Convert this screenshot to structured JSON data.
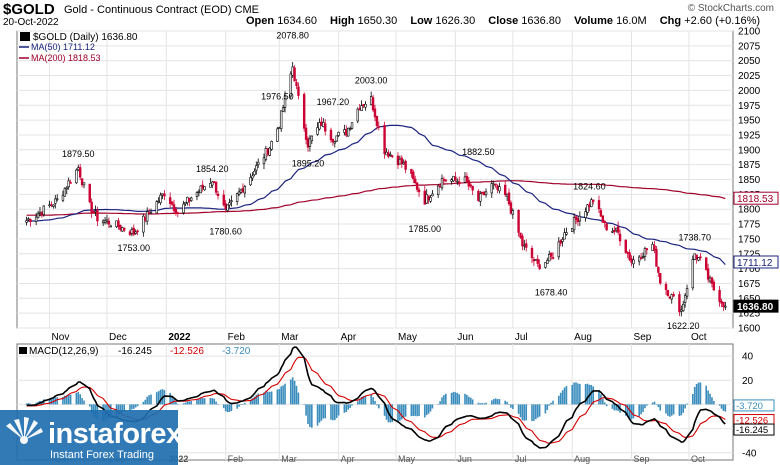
{
  "header": {
    "symbol": "$GOLD",
    "subtitle": "Gold - Continuous Contract (EOD)  CME",
    "date": "20-Oct-2022",
    "copyright": "© StockCharts.com",
    "ohlc": [
      {
        "label": "Open",
        "value": "1634.60"
      },
      {
        "label": "High",
        "value": "1650.30"
      },
      {
        "label": "Low",
        "value": "1626.30"
      },
      {
        "label": "Close",
        "value": "1636.80"
      },
      {
        "label": "Volume",
        "value": "16.0M"
      },
      {
        "label": "Chg",
        "value": "+2.60 (+0.16%)"
      }
    ]
  },
  "legend": {
    "price": "$GOLD (Daily) 1636.80",
    "ma50": "MA(50) 1711.12",
    "ma200": "MA(200) 1818.53"
  },
  "macd_legend": {
    "label": "MACD(12,26,9)",
    "macd": "-16.245",
    "signal": "-12.526",
    "hist": "-3.720"
  },
  "logo": {
    "word": "instaforex",
    "tag": "Instant Forex Trading"
  },
  "colors": {
    "up": "#000000",
    "down": "#cc0033",
    "ma50": "#1a237e",
    "ma200": "#a0002a",
    "macd": "#000000",
    "signal": "#d40000",
    "hist": "#3b8dbd",
    "grid": "#e4e4e4",
    "logo_bg": "#1f6fb0"
  },
  "chart_data": [
    {
      "type": "candlestick",
      "title": "$GOLD (Daily)",
      "x_labels": [
        "Nov",
        "Dec",
        "2022",
        "Feb",
        "Mar",
        "Apr",
        "May",
        "Jun",
        "Jul",
        "Aug",
        "Sep",
        "Oct"
      ],
      "y_ticks": [
        1600,
        1625,
        1650,
        1675,
        1700,
        1725,
        1750,
        1775,
        1800,
        1825,
        1850,
        1875,
        1900,
        1925,
        1950,
        1975,
        2000,
        2025,
        2050,
        2075,
        2100
      ],
      "ylim": [
        1600,
        2100
      ],
      "grid": true,
      "close_anchors": [
        [
          "2021-10-20",
          1781
        ],
        [
          "2021-10-27",
          1795
        ],
        [
          "2021-11-05",
          1815
        ],
        [
          "2021-11-16",
          1870
        ],
        [
          "2021-11-22",
          1805
        ],
        [
          "2021-11-26",
          1785
        ],
        [
          "2021-12-03",
          1777
        ],
        [
          "2021-12-15",
          1760
        ],
        [
          "2021-12-22",
          1790
        ],
        [
          "2021-12-31",
          1828
        ],
        [
          "2022-01-07",
          1795
        ],
        [
          "2022-01-14",
          1820
        ],
        [
          "2022-01-25",
          1850
        ],
        [
          "2022-02-01",
          1795
        ],
        [
          "2022-02-10",
          1836
        ],
        [
          "2022-02-24",
          1905
        ],
        [
          "2022-03-01",
          1944
        ],
        [
          "2022-03-08",
          2040
        ],
        [
          "2022-03-11",
          1985
        ],
        [
          "2022-03-16",
          1910
        ],
        [
          "2022-03-23",
          1945
        ],
        [
          "2022-03-29",
          1920
        ],
        [
          "2022-04-05",
          1930
        ],
        [
          "2022-04-12",
          1975
        ],
        [
          "2022-04-18",
          1985
        ],
        [
          "2022-04-25",
          1900
        ],
        [
          "2022-05-05",
          1875
        ],
        [
          "2022-05-16",
          1815
        ],
        [
          "2022-05-25",
          1850
        ],
        [
          "2022-06-06",
          1848
        ],
        [
          "2022-06-13",
          1815
        ],
        [
          "2022-06-20",
          1840
        ],
        [
          "2022-06-28",
          1820
        ],
        [
          "2022-07-06",
          1740
        ],
        [
          "2022-07-14",
          1705
        ],
        [
          "2022-07-21",
          1718
        ],
        [
          "2022-07-28",
          1760
        ],
        [
          "2022-08-05",
          1790
        ],
        [
          "2022-08-12",
          1816
        ],
        [
          "2022-08-18",
          1772
        ],
        [
          "2022-08-25",
          1760
        ],
        [
          "2022-09-01",
          1712
        ],
        [
          "2022-09-12",
          1740
        ],
        [
          "2022-09-16",
          1680
        ],
        [
          "2022-09-27",
          1630
        ],
        [
          "2022-10-04",
          1725
        ],
        [
          "2022-10-07",
          1712
        ],
        [
          "2022-10-13",
          1670
        ],
        [
          "2022-10-20",
          1636.8
        ]
      ],
      "annotations": [
        {
          "date": "2021-11-16",
          "text": "1879.50"
        },
        {
          "date": "2021-12-15",
          "text": "1753.00"
        },
        {
          "date": "2022-01-25",
          "text": "1854.20"
        },
        {
          "date": "2022-02-01",
          "text": "1780.60"
        },
        {
          "date": "2022-03-08",
          "text": "2078.80"
        },
        {
          "date": "2022-02-28",
          "text": "1976.50"
        },
        {
          "date": "2022-03-16",
          "text": "1895.20"
        },
        {
          "date": "2022-03-29",
          "text": "1967.20"
        },
        {
          "date": "2022-04-18",
          "text": "2003.00"
        },
        {
          "date": "2022-05-16",
          "text": "1785.00"
        },
        {
          "date": "2022-06-13",
          "text": "1882.50"
        },
        {
          "date": "2022-07-21",
          "text": "1678.40"
        },
        {
          "date": "2022-08-10",
          "text": "1824.60"
        },
        {
          "date": "2022-09-28",
          "text": "1622.20"
        },
        {
          "date": "2022-10-04",
          "text": "1738.70"
        }
      ],
      "last_values": [
        {
          "name": "MA(200)",
          "value": "1818.53"
        },
        {
          "name": "MA(50)",
          "value": "1711.12"
        },
        {
          "name": "$GOLD",
          "value": "1636.80"
        }
      ]
    },
    {
      "type": "line",
      "title": "MACD(12,26,9)",
      "y_ticks": [
        -40,
        -20,
        0,
        20,
        40
      ],
      "ylim": [
        -46,
        50
      ],
      "grid": true,
      "last_values": [
        {
          "name": "Histogram",
          "value": "-3.720"
        },
        {
          "name": "Signal",
          "value": "-12.526"
        },
        {
          "name": "MACD",
          "value": "-16.245"
        }
      ]
    }
  ]
}
